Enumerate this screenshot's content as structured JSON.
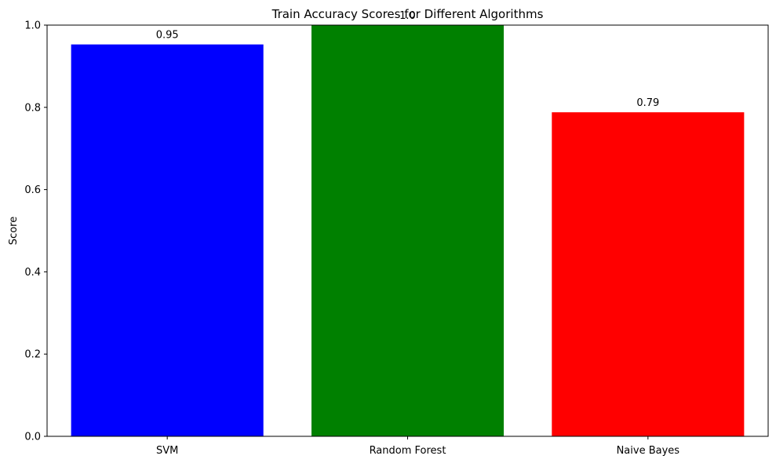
{
  "chart_data": {
    "type": "bar",
    "title": "Train Accuracy Scores for Different Algorithms",
    "xlabel": "",
    "ylabel": "Score",
    "categories": [
      "SVM",
      "Random Forest",
      "Naive Bayes"
    ],
    "values": [
      0.953,
      1.0,
      0.788
    ],
    "data_labels": [
      "0.95",
      "1.0",
      "0.79"
    ],
    "colors": [
      "#0000ff",
      "#008000",
      "#ff0000"
    ],
    "ylim": [
      0,
      1.0
    ],
    "yticks": [
      0.0,
      0.2,
      0.4,
      0.6,
      0.8,
      1.0
    ],
    "ytick_labels": [
      "0.0",
      "0.2",
      "0.4",
      "0.6",
      "0.8",
      "1.0"
    ],
    "grid": false,
    "legend": "none"
  }
}
